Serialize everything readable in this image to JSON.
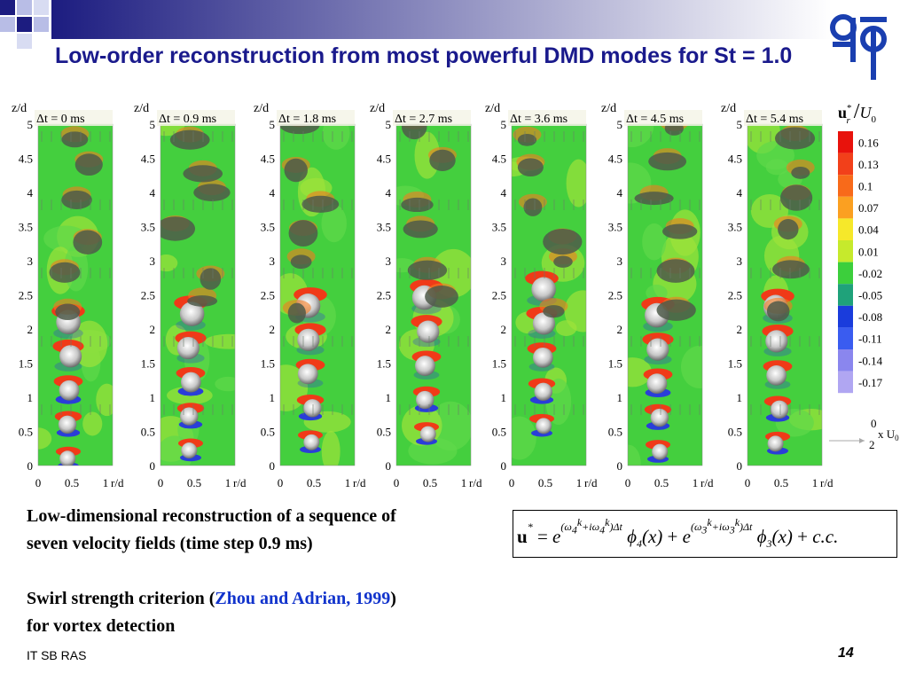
{
  "header": {
    "title": "Low-order reconstruction from most powerful DMD modes for St = 1.0"
  },
  "panels": {
    "y_axis_label": "z/d",
    "x_axis_label": "r/d",
    "y_ticks": [
      "5",
      "4.5",
      "4",
      "3.5",
      "3",
      "2.5",
      "2",
      "1.5",
      "1",
      "0.5",
      "0"
    ],
    "x_ticks": [
      "0",
      "0.5",
      "1"
    ],
    "times": [
      "Δt = 0 ms",
      "Δt = 0.9 ms",
      "Δt = 1.8 ms",
      "Δt = 2.7 ms",
      "Δt = 3.6 ms",
      "Δt = 4.5 ms",
      "Δt = 5.4 ms"
    ]
  },
  "colorbar": {
    "label": {
      "symbol": "u",
      "superscript": "*",
      "subscript": "r",
      "divisor": "U",
      "divisor_subscript": "0"
    },
    "levels": [
      "0.16",
      "0.13",
      "0.1",
      "0.07",
      "0.04",
      "0.01",
      "-0.02",
      "-0.05",
      "-0.08",
      "-0.11",
      "-0.14",
      "-0.17"
    ],
    "colors": [
      "#e8120c",
      "#f2401a",
      "#f86a1a",
      "#fba021",
      "#f6e82a",
      "#c6ea2c",
      "#3ccf3c",
      "#1fa27a",
      "#1a3cdc",
      "#3a5cf0",
      "#8a86ee",
      "#b0a6f2"
    ]
  },
  "vector_scale": {
    "top": "0",
    "unit": "x U",
    "unit_subscript": "0",
    "bottom": "2"
  },
  "caption": {
    "lines": [
      "Low-dimensional reconstruction of a sequence of",
      "seven velocity fields (time step 0.9 ms)"
    ]
  },
  "note": {
    "before": "Swirl strength criterion (",
    "link": "Zhou and Adrian, 1999",
    "after": ")",
    "line2": "for vortex detection"
  },
  "formula": {
    "lhs": "u",
    "star": "*",
    "equals": "=",
    "exp": "e",
    "open": "(",
    "omega": "ω",
    "k": "k",
    "plus": "+",
    "i": "i",
    "close": ")",
    "delta_t": "Δt",
    "phi": "ϕ",
    "arg": "(x)",
    "mode_a": "4",
    "mode_b": "3",
    "cc": "c.c."
  },
  "footer": {
    "organization": "IT SB RAS",
    "page": "14"
  }
}
